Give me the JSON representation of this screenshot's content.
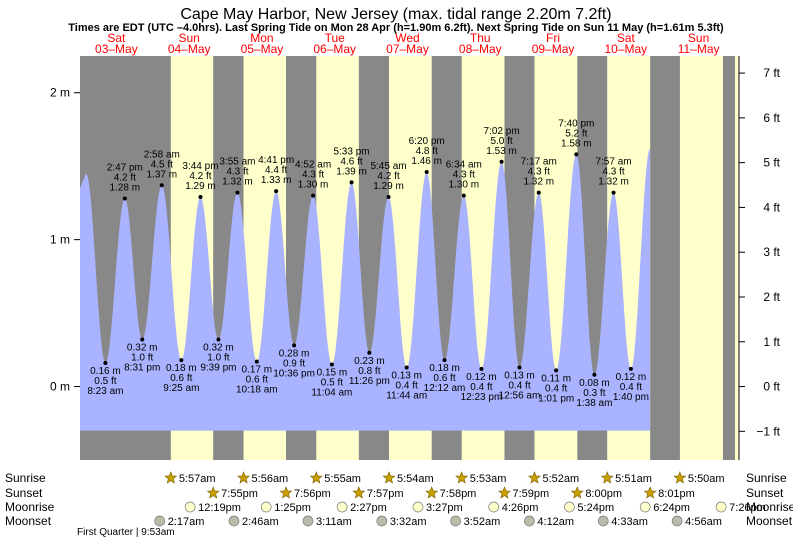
{
  "chart_data": {
    "type": "area",
    "title": "Cape May Harbor, New Jersey (max. tidal range 2.20m 7.2ft)",
    "subtitle": "Times are EDT (UTC –4.0hrs). Last Spring Tide on Mon 28 Apr (h=1.90m 6.2ft). Next Spring Tide on Sun 11 May (h=1.61m 5.3ft)",
    "days": [
      {
        "dow": "Sat",
        "date": "03–May"
      },
      {
        "dow": "Sun",
        "date": "04–May"
      },
      {
        "dow": "Mon",
        "date": "05–May"
      },
      {
        "dow": "Tue",
        "date": "06–May"
      },
      {
        "dow": "Wed",
        "date": "07–May"
      },
      {
        "dow": "Thu",
        "date": "08–May"
      },
      {
        "dow": "Fri",
        "date": "09–May"
      },
      {
        "dow": "Sat",
        "date": "10–May"
      },
      {
        "dow": "Sun",
        "date": "11–May"
      }
    ],
    "x_range_hours": [
      0,
      216
    ],
    "ylim_m": [
      -0.5,
      2.25
    ],
    "y_left_ticks": [
      {
        "v": 0,
        "label": "0 m"
      },
      {
        "v": 1,
        "label": "1 m"
      },
      {
        "v": 2,
        "label": "2 m"
      }
    ],
    "y_right_ticks": [
      {
        "ft": -1,
        "label": "−1 ft"
      },
      {
        "ft": 0,
        "label": "0 ft"
      },
      {
        "ft": 1,
        "label": "1 ft"
      },
      {
        "ft": 2,
        "label": "2 ft"
      },
      {
        "ft": 3,
        "label": "3 ft"
      },
      {
        "ft": 4,
        "label": "4 ft"
      },
      {
        "ft": 5,
        "label": "5 ft"
      },
      {
        "ft": 6,
        "label": "6 ft"
      },
      {
        "ft": 7,
        "label": "7 ft"
      }
    ],
    "light_intervals": [
      [
        29.95,
        43.92
      ],
      [
        53.93,
        67.93
      ],
      [
        77.92,
        91.95
      ],
      [
        101.9,
        115.97
      ],
      [
        125.88,
        139.98
      ],
      [
        149.87,
        164.0
      ],
      [
        173.85,
        188.02
      ],
      [
        197.83,
        212.03
      ]
    ],
    "extremes": [
      {
        "t": 2.0,
        "h": 1.45
      },
      {
        "t": 8.38,
        "h": 0.16,
        "time": "8:23 am",
        "ft": "0.5 ft",
        "m": "0.16 m"
      },
      {
        "t": 14.78,
        "h": 1.28,
        "time": "2:47 pm",
        "ft": "4.2 ft",
        "m": "1.28 m"
      },
      {
        "t": 20.52,
        "h": 0.32,
        "time": "8:31 pm",
        "ft": "1.0 ft",
        "m": "0.32 m"
      },
      {
        "t": 26.97,
        "h": 1.37,
        "time": "2:58 am",
        "ft": "4.5 ft",
        "m": "1.37 m"
      },
      {
        "t": 33.42,
        "h": 0.18,
        "time": "9:25 am",
        "ft": "0.6 ft",
        "m": "0.18 m"
      },
      {
        "t": 39.73,
        "h": 1.29,
        "time": "3:44 pm",
        "ft": "4.2 ft",
        "m": "1.29 m"
      },
      {
        "t": 45.65,
        "h": 0.32,
        "time": "9:39 pm",
        "ft": "1.0 ft",
        "m": "0.32 m"
      },
      {
        "t": 51.92,
        "h": 1.32,
        "time": "3:55 am",
        "ft": "4.3 ft",
        "m": "1.32 m"
      },
      {
        "t": 58.3,
        "h": 0.17,
        "time": "10:18 am",
        "ft": "0.6 ft",
        "m": "0.17 m"
      },
      {
        "t": 64.68,
        "h": 1.33,
        "time": "4:41 pm",
        "ft": "4.4 ft",
        "m": "1.33 m"
      },
      {
        "t": 70.6,
        "h": 0.28,
        "time": "10:36 pm",
        "ft": "0.9 ft",
        "m": "0.28 m"
      },
      {
        "t": 76.87,
        "h": 1.3,
        "time": "4:52 am",
        "ft": "4.3 ft",
        "m": "1.30 m"
      },
      {
        "t": 83.07,
        "h": 0.15,
        "time": "11:04 am",
        "ft": "0.5 ft",
        "m": "0.15 m"
      },
      {
        "t": 89.55,
        "h": 1.39,
        "time": "5:33 pm",
        "ft": "4.6 ft",
        "m": "1.39 m"
      },
      {
        "t": 95.43,
        "h": 0.23,
        "time": "11:26 pm",
        "ft": "0.8 ft",
        "m": "0.23 m"
      },
      {
        "t": 101.75,
        "h": 1.29,
        "time": "5:45 am",
        "ft": "4.2 ft",
        "m": "1.29 m"
      },
      {
        "t": 107.73,
        "h": 0.13,
        "time": "11:44 am",
        "ft": "0.4 ft",
        "m": "0.13 m"
      },
      {
        "t": 114.33,
        "h": 1.46,
        "time": "6:20 pm",
        "ft": "4.8 ft",
        "m": "1.46 m"
      },
      {
        "t": 120.2,
        "h": 0.18,
        "time": "12:12 am",
        "ft": "0.6 ft",
        "m": "0.18 m"
      },
      {
        "t": 126.57,
        "h": 1.3,
        "time": "6:34 am",
        "ft": "4.3 ft",
        "m": "1.30 m"
      },
      {
        "t": 132.38,
        "h": 0.12,
        "time": "12:23 pm",
        "ft": "0.4 ft",
        "m": "0.12 m"
      },
      {
        "t": 139.03,
        "h": 1.53,
        "time": "7:02 pm",
        "ft": "5.0 ft",
        "m": "1.53 m"
      },
      {
        "t": 144.93,
        "h": 0.13,
        "time": "12:56 am",
        "ft": "0.4 ft",
        "m": "0.13 m"
      },
      {
        "t": 151.28,
        "h": 1.32,
        "time": "7:17 am",
        "ft": "4.3 ft",
        "m": "1.32 m"
      },
      {
        "t": 157.02,
        "h": 0.11,
        "time": "1:01 pm",
        "ft": "0.4 ft",
        "m": "0.11 m"
      },
      {
        "t": 163.67,
        "h": 1.58,
        "time": "7:40 pm",
        "ft": "5.2 ft",
        "m": "1.58 m"
      },
      {
        "t": 169.63,
        "h": 0.08,
        "time": "1:38 am",
        "ft": "0.3 ft",
        "m": "0.08 m"
      },
      {
        "t": 175.95,
        "h": 1.32,
        "time": "7:57 am",
        "ft": "4.3 ft",
        "m": "1.32 m"
      },
      {
        "t": 181.67,
        "h": 0.12,
        "time": "1:40 pm",
        "ft": "0.4 ft",
        "m": "0.12 m"
      },
      {
        "t": 188.0,
        "h": 1.62
      }
    ],
    "sunrise": [
      {
        "t": 29.95,
        "label": "5:57am"
      },
      {
        "t": 53.93,
        "label": "5:56am"
      },
      {
        "t": 77.92,
        "label": "5:55am"
      },
      {
        "t": 101.9,
        "label": "5:54am"
      },
      {
        "t": 125.88,
        "label": "5:53am"
      },
      {
        "t": 149.87,
        "label": "5:52am"
      },
      {
        "t": 173.85,
        "label": "5:51am"
      },
      {
        "t": 197.83,
        "label": "5:50am"
      }
    ],
    "sunset": [
      {
        "t": 43.92,
        "label": "7:55pm"
      },
      {
        "t": 67.93,
        "label": "7:56pm"
      },
      {
        "t": 91.95,
        "label": "7:57pm"
      },
      {
        "t": 115.97,
        "label": "7:58pm"
      },
      {
        "t": 139.98,
        "label": "7:59pm"
      },
      {
        "t": 164.0,
        "label": "8:00pm"
      },
      {
        "t": 188.02,
        "label": "8:01pm"
      }
    ],
    "moonrise": [
      {
        "t": 36.32,
        "label": "12:19pm"
      },
      {
        "t": 61.42,
        "label": "1:25pm"
      },
      {
        "t": 86.45,
        "label": "2:27pm"
      },
      {
        "t": 111.45,
        "label": "3:27pm"
      },
      {
        "t": 136.43,
        "label": "4:26pm"
      },
      {
        "t": 161.4,
        "label": "5:24pm"
      },
      {
        "t": 186.4,
        "label": "6:24pm"
      },
      {
        "t": 211.43,
        "label": "7:26pm"
      }
    ],
    "moonset": [
      {
        "t": 26.28,
        "label": "2:17am"
      },
      {
        "t": 50.77,
        "label": "2:46am"
      },
      {
        "t": 75.18,
        "label": "3:11am"
      },
      {
        "t": 99.53,
        "label": "3:32am"
      },
      {
        "t": 123.87,
        "label": "3:52am"
      },
      {
        "t": 148.2,
        "label": "4:12am"
      },
      {
        "t": 172.55,
        "label": "4:33am"
      },
      {
        "t": 196.93,
        "label": "4:56am"
      }
    ],
    "row_labels": {
      "sunrise": "Sunrise",
      "sunset": "Sunset",
      "moonrise": "Moonrise",
      "moonset": "Moonset"
    },
    "phase_note": "First Quarter | 9:53am",
    "colors": {
      "night": "#888888",
      "day": "#ffffcc",
      "tide": "#a9b3ff",
      "day_text": "#ff0000",
      "sun": "#c8a000",
      "moon_rise": "#ffffcc",
      "moon_set": "#bbbbaa"
    }
  }
}
